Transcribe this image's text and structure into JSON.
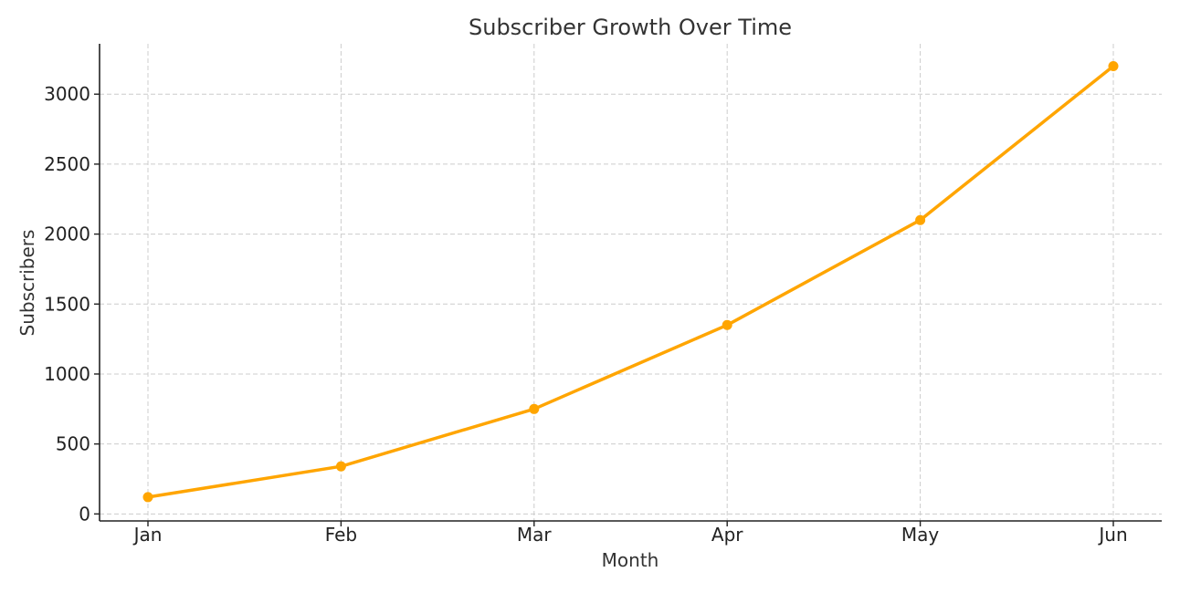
{
  "chart_data": {
    "type": "line",
    "title": "Subscriber Growth Over Time",
    "xlabel": "Month",
    "ylabel": "Subscribers",
    "categories": [
      "Jan",
      "Feb",
      "Mar",
      "Apr",
      "May",
      "Jun"
    ],
    "series": [
      {
        "values": [
          120,
          340,
          750,
          1350,
          2100,
          3200
        ],
        "color": "#FFA500",
        "marker": "circle"
      }
    ],
    "ylim": [
      -50,
      3360
    ],
    "yticks": [
      0,
      500,
      1000,
      1500,
      2000,
      2500,
      3000
    ],
    "grid": true,
    "legend": "none"
  }
}
